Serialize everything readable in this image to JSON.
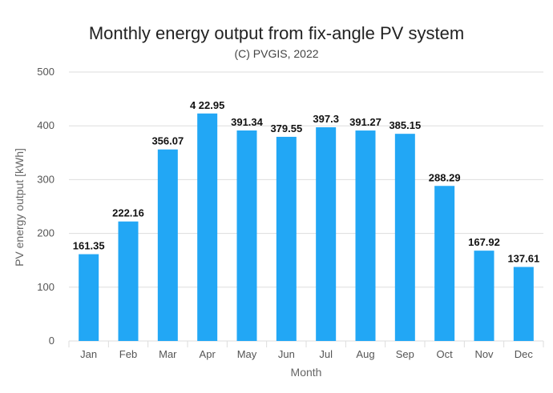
{
  "chart_data": {
    "type": "bar",
    "title": "Monthly energy output from fix-angle PV system",
    "subtitle": "(C) PVGIS, 2022",
    "xlabel": "Month",
    "ylabel": "PV energy output [kWh]",
    "categories": [
      "Jan",
      "Feb",
      "Mar",
      "Apr",
      "May",
      "Jun",
      "Jul",
      "Aug",
      "Sep",
      "Oct",
      "Nov",
      "Dec"
    ],
    "values": [
      161.35,
      222.16,
      356.07,
      422.95,
      391.34,
      379.55,
      397.3,
      391.27,
      385.15,
      288.29,
      167.92,
      137.61
    ],
    "value_labels": [
      "161.35",
      "222.16",
      "356.07",
      "4 22.95",
      "391.34",
      "379.55",
      "397.3",
      "391.27",
      "385.15",
      "288.29",
      "167.92",
      "137.61"
    ],
    "yticks": [
      0,
      100,
      200,
      300,
      400,
      500
    ],
    "ylim": [
      0,
      500
    ],
    "grid": true,
    "bar_color": "#22a7f5",
    "grid_color": "#dddddd"
  }
}
